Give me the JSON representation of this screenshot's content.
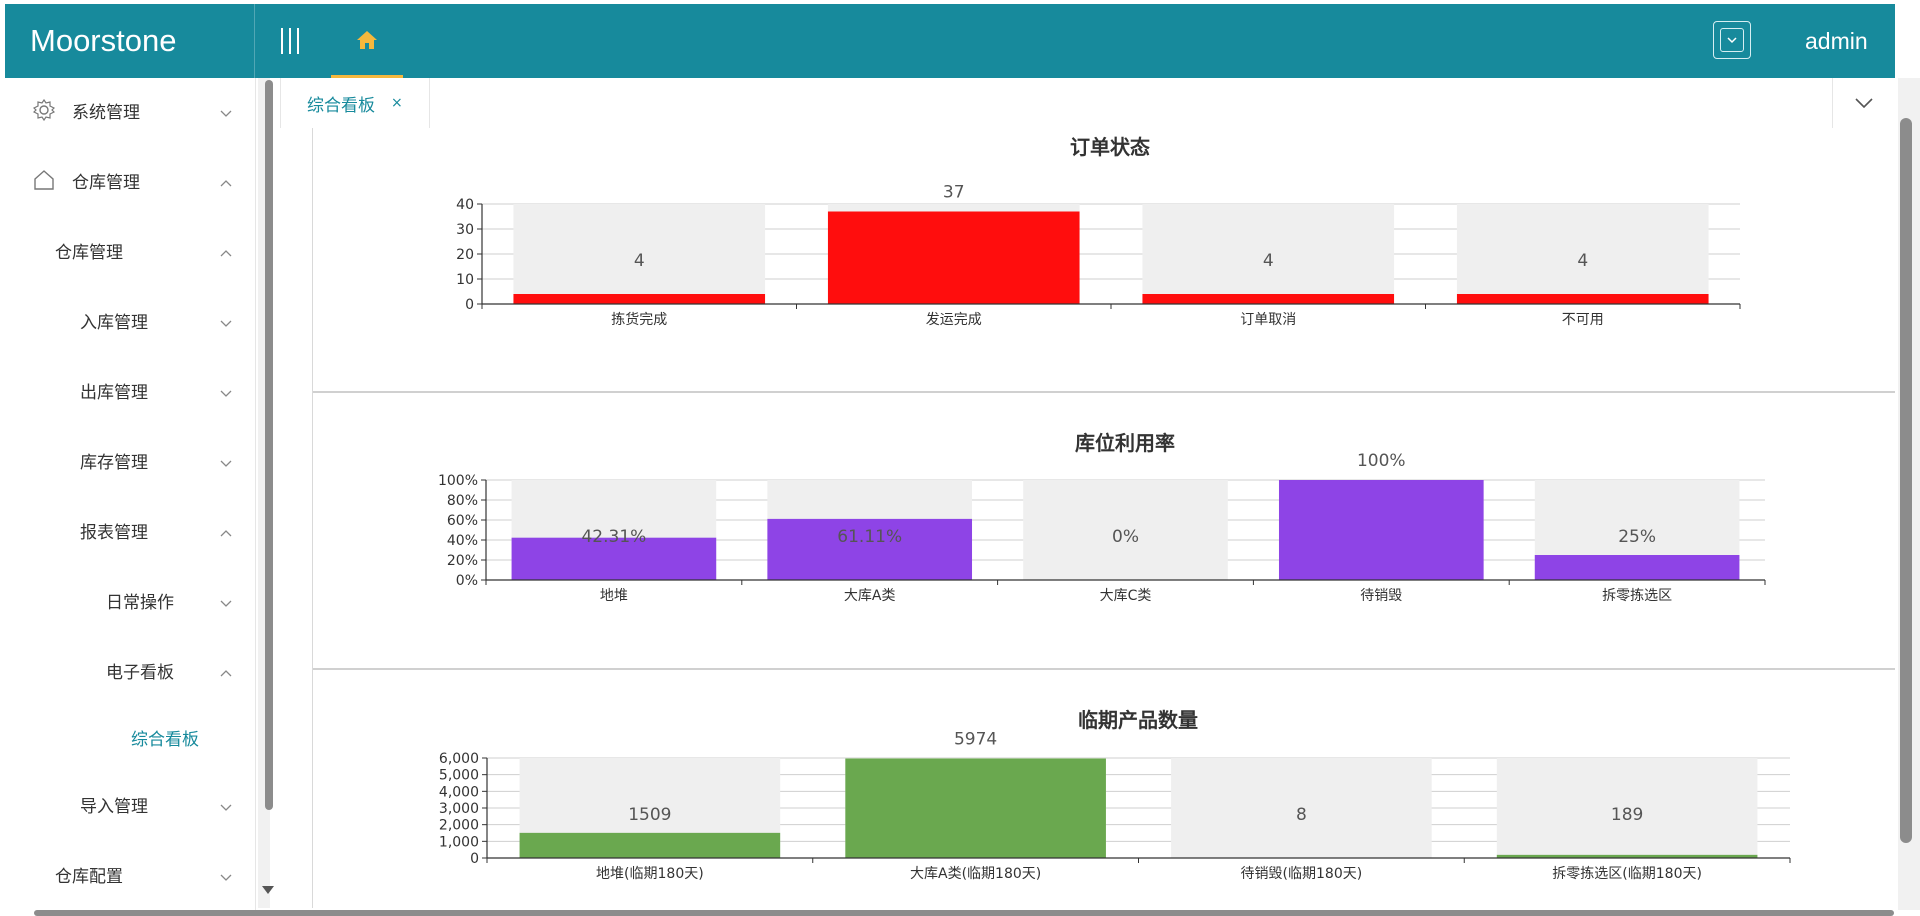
{
  "header": {
    "brand": "Moorstone",
    "user": "admin",
    "home_icon": "home-icon",
    "menu_icon": "hamburger-icon"
  },
  "colors": {
    "primary": "#178a9c",
    "accent": "#f5b83d",
    "bar_red": "#ff0d0d",
    "bar_purple": "#8e44e6",
    "bar_green": "#6aa84f",
    "band_gray": "#efefef"
  },
  "sidebar": {
    "items": [
      {
        "label": "系统管理",
        "icon": "gear-icon",
        "chevron": "down"
      },
      {
        "label": "仓库管理",
        "icon": "home-outline-icon",
        "chevron": "up"
      },
      {
        "label": "仓库管理",
        "chevron": "up"
      },
      {
        "label": "入库管理",
        "chevron": "down"
      },
      {
        "label": "出库管理",
        "chevron": "down"
      },
      {
        "label": "库存管理",
        "chevron": "down"
      },
      {
        "label": "报表管理",
        "chevron": "up"
      },
      {
        "label": "日常操作",
        "chevron": "down"
      },
      {
        "label": "电子看板",
        "chevron": "up"
      },
      {
        "label": "综合看板",
        "active": true
      },
      {
        "label": "导入管理",
        "chevron": "down"
      },
      {
        "label": "仓库配置",
        "chevron": "down"
      }
    ]
  },
  "tabs": [
    {
      "label": "综合看板",
      "close": "×"
    }
  ],
  "chart_data": [
    {
      "type": "bar",
      "title": "订单状态",
      "categories": [
        "拣货完成",
        "发运完成",
        "订单取消",
        "不可用"
      ],
      "values": [
        4,
        37,
        4,
        4
      ],
      "value_labels": [
        "4",
        "37",
        "4",
        "4"
      ],
      "ylim": [
        0,
        40
      ],
      "yticks": [
        "0",
        "10",
        "20",
        "30",
        "40"
      ],
      "background_band": true,
      "color": "#ff0d0d"
    },
    {
      "type": "bar",
      "title": "库位利用率",
      "categories": [
        "地堆",
        "大库A类",
        "大库C类",
        "待销毁",
        "拆零拣选区"
      ],
      "values": [
        42.31,
        61.11,
        0,
        100,
        25
      ],
      "value_labels": [
        "42.31%",
        "61.11%",
        "0%",
        "100%",
        "25%"
      ],
      "ylim": [
        0,
        100
      ],
      "yticks": [
        "0%",
        "20%",
        "40%",
        "60%",
        "80%",
        "100%"
      ],
      "background_band": true,
      "color": "#8e44e6"
    },
    {
      "type": "bar",
      "title": "临期产品数量",
      "categories": [
        "地堆(临期180天)",
        "大库A类(临期180天)",
        "待销毁(临期180天)",
        "拆零拣选区(临期180天)"
      ],
      "values": [
        1509,
        5974,
        8,
        189
      ],
      "value_labels": [
        "1509",
        "5974",
        "8",
        "189"
      ],
      "ylim": [
        0,
        6000
      ],
      "yticks": [
        "0",
        "1,000",
        "2,000",
        "3,000",
        "4,000",
        "5,000",
        "6,000"
      ],
      "background_band": true,
      "color": "#6aa84f"
    }
  ]
}
